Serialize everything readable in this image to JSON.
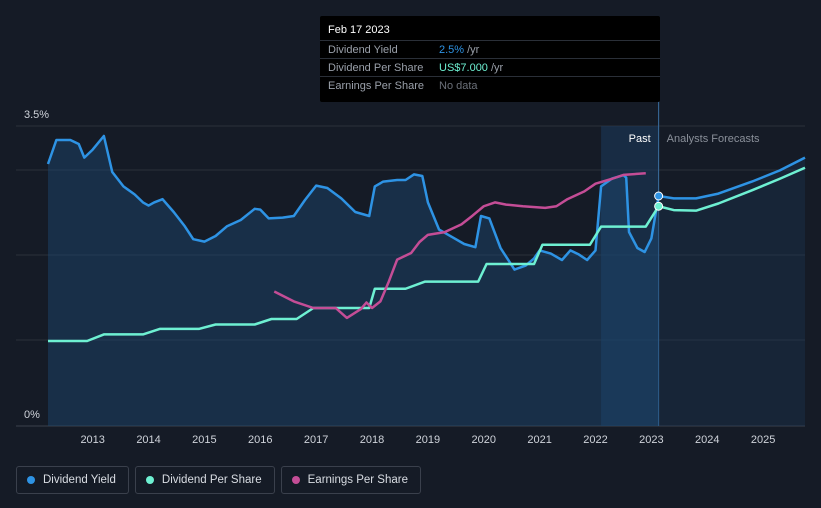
{
  "tooltip": {
    "date": "Feb 17 2023",
    "rows": [
      {
        "label": "Dividend Yield",
        "value": "2.5%",
        "unit": "/yr",
        "color": "#2e93e4"
      },
      {
        "label": "Dividend Per Share",
        "value": "US$7.000",
        "unit": "/yr",
        "color": "#6ef0d2"
      },
      {
        "label": "Earnings Per Share",
        "value": "No data",
        "unit": "",
        "color": "#6b7079"
      }
    ]
  },
  "legend": [
    {
      "label": "Dividend Yield",
      "color": "#2e93e4"
    },
    {
      "label": "Dividend Per Share",
      "color": "#6ef0d2"
    },
    {
      "label": "Earnings Per Share",
      "color": "#c44d96"
    }
  ],
  "chart_data": {
    "type": "line",
    "y_tick_labels": [
      "3.5%",
      "0%"
    ],
    "ylim": [
      0,
      3.5
    ],
    "xlim": [
      2012.2,
      2025.75
    ],
    "x_tick_labels": [
      "2013",
      "2014",
      "2015",
      "2016",
      "2017",
      "2018",
      "2019",
      "2020",
      "2021",
      "2022",
      "2023",
      "2024",
      "2025"
    ],
    "past_label": "Past",
    "forecast_label": "Analysts Forecasts",
    "past_band": [
      2022.1,
      2023.13
    ],
    "grid": true,
    "series": [
      {
        "name": "Dividend Yield",
        "color": "#2e93e4",
        "axis": "percent",
        "points": [
          [
            2012.2,
            2.9
          ],
          [
            2012.35,
            3.2
          ],
          [
            2012.6,
            3.2
          ],
          [
            2012.75,
            3.15
          ],
          [
            2012.85,
            2.98
          ],
          [
            2013.0,
            3.08
          ],
          [
            2013.2,
            3.25
          ],
          [
            2013.35,
            2.8
          ],
          [
            2013.55,
            2.62
          ],
          [
            2013.75,
            2.52
          ],
          [
            2013.9,
            2.42
          ],
          [
            2014.0,
            2.38
          ],
          [
            2014.1,
            2.42
          ],
          [
            2014.25,
            2.46
          ],
          [
            2014.45,
            2.3
          ],
          [
            2014.65,
            2.12
          ],
          [
            2014.8,
            1.96
          ],
          [
            2015.0,
            1.93
          ],
          [
            2015.2,
            2.0
          ],
          [
            2015.4,
            2.12
          ],
          [
            2015.65,
            2.2
          ],
          [
            2015.9,
            2.34
          ],
          [
            2016.0,
            2.33
          ],
          [
            2016.15,
            2.22
          ],
          [
            2016.4,
            2.23
          ],
          [
            2016.6,
            2.25
          ],
          [
            2016.8,
            2.45
          ],
          [
            2017.0,
            2.63
          ],
          [
            2017.2,
            2.6
          ],
          [
            2017.45,
            2.47
          ],
          [
            2017.7,
            2.3
          ],
          [
            2017.95,
            2.25
          ],
          [
            2018.05,
            2.62
          ],
          [
            2018.2,
            2.68
          ],
          [
            2018.45,
            2.7
          ],
          [
            2018.6,
            2.7
          ],
          [
            2018.75,
            2.77
          ],
          [
            2018.9,
            2.75
          ],
          [
            2019.0,
            2.42
          ],
          [
            2019.2,
            2.08
          ],
          [
            2019.45,
            1.98
          ],
          [
            2019.65,
            1.9
          ],
          [
            2019.85,
            1.86
          ],
          [
            2019.95,
            2.25
          ],
          [
            2020.1,
            2.22
          ],
          [
            2020.3,
            1.85
          ],
          [
            2020.55,
            1.58
          ],
          [
            2020.75,
            1.63
          ],
          [
            2020.9,
            1.72
          ],
          [
            2021.0,
            1.82
          ],
          [
            2021.2,
            1.78
          ],
          [
            2021.4,
            1.7
          ],
          [
            2021.55,
            1.82
          ],
          [
            2021.7,
            1.77
          ],
          [
            2021.85,
            1.7
          ],
          [
            2022.0,
            1.82
          ],
          [
            2022.1,
            2.62
          ],
          [
            2022.3,
            2.72
          ],
          [
            2022.5,
            2.76
          ],
          [
            2022.55,
            2.73
          ],
          [
            2022.6,
            2.05
          ],
          [
            2022.75,
            1.85
          ],
          [
            2022.88,
            1.8
          ],
          [
            2023.0,
            1.97
          ],
          [
            2023.13,
            2.5
          ]
        ],
        "forecast": [
          [
            2023.13,
            2.5
          ],
          [
            2023.4,
            2.47
          ],
          [
            2023.8,
            2.47
          ],
          [
            2024.2,
            2.53
          ],
          [
            2024.8,
            2.68
          ],
          [
            2025.3,
            2.82
          ],
          [
            2025.75,
            2.98
          ]
        ]
      },
      {
        "name": "Dividend Per Share",
        "color": "#6ef0d2",
        "axis": "dps",
        "points": [
          [
            2012.2,
            1.0
          ],
          [
            2012.9,
            1.0
          ],
          [
            2013.2,
            1.12
          ],
          [
            2013.9,
            1.12
          ],
          [
            2014.2,
            1.22
          ],
          [
            2014.9,
            1.22
          ],
          [
            2015.2,
            1.3
          ],
          [
            2015.9,
            1.3
          ],
          [
            2016.2,
            1.4
          ],
          [
            2016.65,
            1.4
          ],
          [
            2016.95,
            1.6
          ],
          [
            2017.6,
            1.6
          ],
          [
            2017.95,
            1.6
          ],
          [
            2018.05,
            1.95
          ],
          [
            2018.6,
            1.95
          ],
          [
            2018.95,
            2.08
          ],
          [
            2019.9,
            2.08
          ],
          [
            2020.05,
            2.4
          ],
          [
            2020.9,
            2.4
          ],
          [
            2021.05,
            2.75
          ],
          [
            2021.9,
            2.75
          ],
          [
            2022.1,
            3.08
          ],
          [
            2022.9,
            3.08
          ],
          [
            2023.13,
            3.45
          ]
        ],
        "forecast": [
          [
            2023.13,
            3.45
          ],
          [
            2023.4,
            3.38
          ],
          [
            2023.8,
            3.37
          ],
          [
            2024.2,
            3.5
          ],
          [
            2024.8,
            3.74
          ],
          [
            2025.3,
            3.95
          ],
          [
            2025.75,
            4.15
          ]
        ]
      },
      {
        "name": "Earnings Per Share",
        "color": "#c44d96",
        "axis": "eps",
        "points": [
          [
            2016.25,
            1.9
          ],
          [
            2016.6,
            1.72
          ],
          [
            2016.95,
            1.6
          ],
          [
            2017.35,
            1.6
          ],
          [
            2017.55,
            1.42
          ],
          [
            2017.8,
            1.58
          ],
          [
            2017.9,
            1.7
          ],
          [
            2018.0,
            1.6
          ],
          [
            2018.15,
            1.72
          ],
          [
            2018.3,
            2.08
          ],
          [
            2018.45,
            2.48
          ],
          [
            2018.7,
            2.6
          ],
          [
            2018.85,
            2.8
          ],
          [
            2019.0,
            2.93
          ],
          [
            2019.3,
            2.98
          ],
          [
            2019.6,
            3.12
          ],
          [
            2019.8,
            3.28
          ],
          [
            2020.0,
            3.45
          ],
          [
            2020.2,
            3.52
          ],
          [
            2020.4,
            3.48
          ],
          [
            2020.7,
            3.45
          ],
          [
            2021.1,
            3.42
          ],
          [
            2021.3,
            3.45
          ],
          [
            2021.5,
            3.58
          ],
          [
            2021.8,
            3.72
          ],
          [
            2022.0,
            3.86
          ],
          [
            2022.3,
            3.95
          ],
          [
            2022.5,
            4.02
          ],
          [
            2022.9,
            4.05
          ]
        ]
      }
    ]
  }
}
